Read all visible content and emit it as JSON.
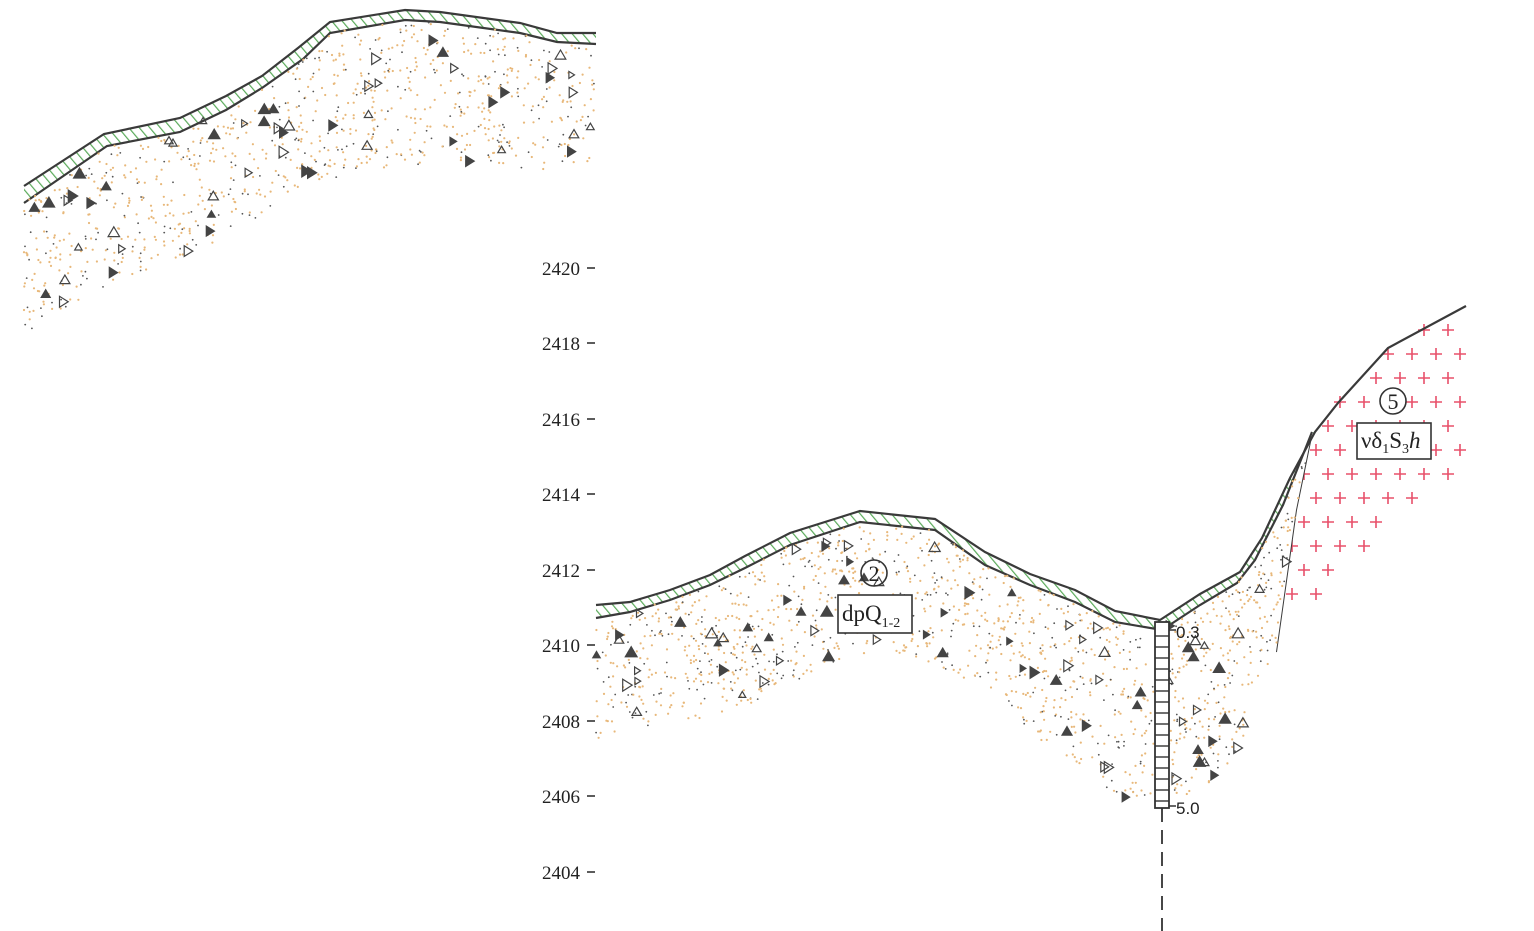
{
  "elevation_axis": {
    "ticks": [
      "2420",
      "2418",
      "2416",
      "2414",
      "2412",
      "2410",
      "2408",
      "2406",
      "2404"
    ]
  },
  "units": [
    {
      "number": "2",
      "code": {
        "main": "dpQ",
        "sub": "1-2"
      }
    },
    {
      "number": "5",
      "code": {
        "p1": "νδ",
        "s1": "1",
        "p2": "S",
        "s2": "3",
        "p3": "h"
      }
    }
  ],
  "borehole": {
    "top_depth": "0.3",
    "bottom_depth": "5.0"
  },
  "colors": {
    "ground_line": "#3a3a3a",
    "topsoil_hatch": "#4aa84a",
    "deposit_dots": "#e8b87a",
    "rock_cross": "#e8506a",
    "clast_symbol": "#444444"
  }
}
